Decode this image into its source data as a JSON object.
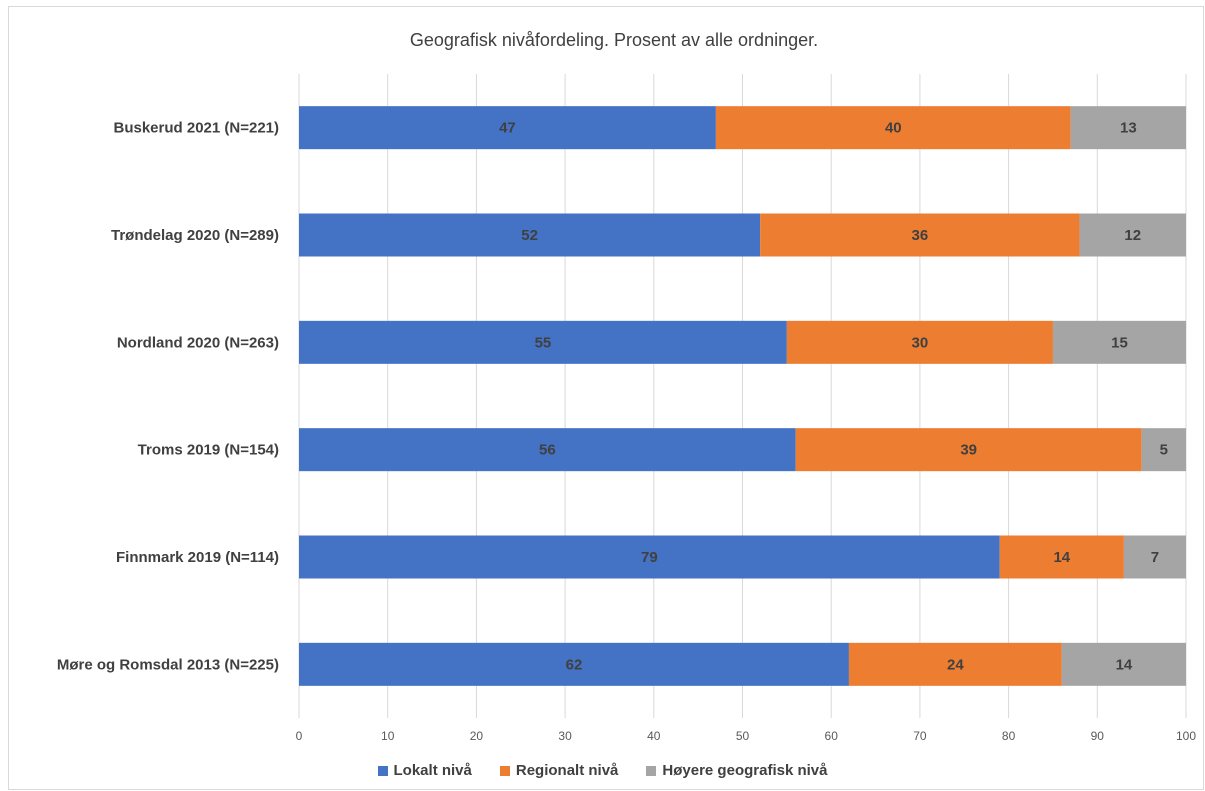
{
  "chart_data": {
    "type": "bar",
    "orientation": "horizontal",
    "stacked": true,
    "title": "Geografisk nivåfordeling. Prosent av alle ordninger.",
    "categories": [
      "Buskerud 2021 (N=221)",
      "Trøndelag 2020 (N=289)",
      "Nordland 2020 (N=263)",
      "Troms 2019 (N=154)",
      "Finnmark 2019 (N=114)",
      "Møre og Romsdal 2013 (N=225)"
    ],
    "series": [
      {
        "name": "Lokalt nivå",
        "color": "#4472c4",
        "values": [
          47,
          52,
          55,
          56,
          79,
          62
        ]
      },
      {
        "name": "Regionalt nivå",
        "color": "#ed7d31",
        "values": [
          40,
          36,
          30,
          39,
          14,
          24
        ]
      },
      {
        "name": "Høyere geografisk nivå",
        "color": "#a5a5a5",
        "values": [
          13,
          12,
          15,
          5,
          7,
          14
        ]
      }
    ],
    "xlim": [
      0,
      100
    ],
    "xticks": [
      "0",
      "10",
      "20",
      "30",
      "40",
      "50",
      "60",
      "70",
      "80",
      "90",
      "100"
    ],
    "grid": true,
    "legend_position": "bottom"
  }
}
